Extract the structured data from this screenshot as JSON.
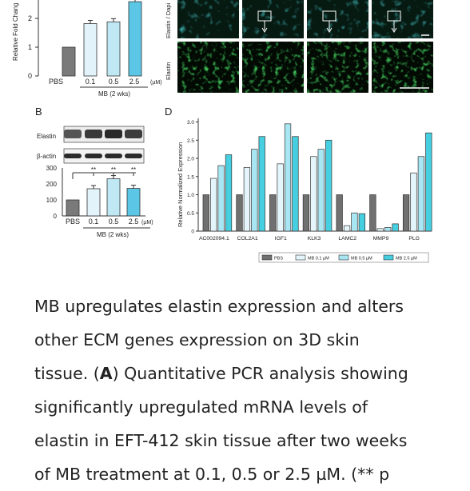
{
  "panel_letters": {
    "b": "B",
    "d": "D"
  },
  "panel_a": {
    "ylabel": "Relative Fold Chang",
    "yticks": [
      "2",
      "1",
      "0"
    ],
    "categories": [
      "PBS",
      "0.1",
      "0.5",
      "2.5"
    ],
    "unit": "(µM)",
    "group_label": "MB (2 wks)"
  },
  "panel_c": {
    "top_label": "Elastin / Dapi",
    "bottom_label": "Elastin"
  },
  "panel_b": {
    "blot_labels": [
      "Elastin",
      "β-actin"
    ],
    "yticks": [
      "300",
      "200",
      "100",
      "0"
    ],
    "significance": [
      "**",
      "**",
      "**"
    ],
    "categories": [
      "PBS",
      "0.1",
      "0.5",
      "2.5"
    ],
    "unit": "(µM)",
    "group_label": "MB (2 wks)"
  },
  "chart_data": [
    {
      "type": "bar",
      "panel": "A",
      "categories": [
        "PBS",
        "0.1",
        "0.5",
        "2.5"
      ],
      "values": [
        1.0,
        1.82,
        1.88,
        2.58
      ],
      "ylabel": "Relative Fold Chang",
      "ylim": [
        0,
        2.8
      ],
      "colors": [
        "#7a7a7a",
        "#e2f3fa",
        "#bfe8f4",
        "#5cc6e6"
      ]
    },
    {
      "type": "bar",
      "panel": "B",
      "categories": [
        "PBS",
        "0.1",
        "0.5",
        "2.5"
      ],
      "values": [
        100,
        170,
        232,
        172
      ],
      "ylim": [
        0,
        300
      ],
      "colors": [
        "#7a7a7a",
        "#e2f3fa",
        "#bfe8f4",
        "#5cc6e6"
      ]
    },
    {
      "type": "bar",
      "panel": "D",
      "categories": [
        "AC002094.1",
        "COL2A1",
        "IGF1",
        "KLK3",
        "LAMC2",
        "MMP9",
        "PLG"
      ],
      "ylabel": "Relative Normalized Expression",
      "yticks": [
        "0",
        "0.5",
        "1.0",
        "1.5",
        "2.0",
        "2.5",
        "3.0"
      ],
      "ylim": [
        0,
        3.1
      ],
      "series": [
        {
          "name": "PBS",
          "values": [
            1.0,
            1.0,
            1.0,
            1.0,
            1.0,
            1.0,
            1.0
          ],
          "color": "#707070"
        },
        {
          "name": "MB 0.1 µM",
          "values": [
            1.45,
            1.75,
            1.85,
            2.05,
            0.15,
            0.07,
            1.6
          ],
          "color": "#e4f6fb"
        },
        {
          "name": "MB 0.5 µM",
          "values": [
            1.8,
            2.25,
            2.95,
            2.25,
            0.5,
            0.1,
            2.05
          ],
          "color": "#a9e6f3"
        },
        {
          "name": "MB 2.5 µM",
          "values": [
            2.1,
            2.6,
            2.6,
            2.5,
            0.48,
            0.2,
            2.7
          ],
          "color": "#45cfe0"
        }
      ]
    }
  ],
  "caption": {
    "line1": "MB upregulates elastin expression and alters",
    "line2": "other ECM genes expression on 3D skin",
    "line3_pre": "tissue. (",
    "line3_bold": "A",
    "line3_post": ") Quantitative PCR analysis showing",
    "line4": "significantly upregulated mRNA levels of",
    "line5": "elastin in EFT-412 skin tissue after two weeks",
    "line6": "of MB treatment at 0.1, 0.5 or 2.5 µM. (** p"
  }
}
